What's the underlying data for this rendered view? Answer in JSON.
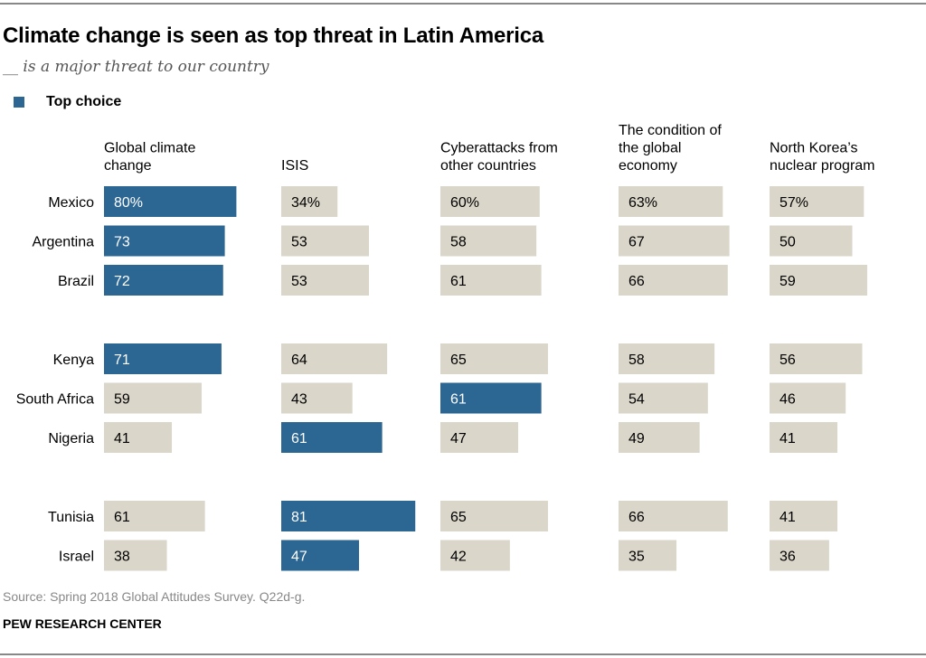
{
  "chart_data": {
    "type": "bar",
    "title": "Climate change is seen as top threat in Latin America",
    "subtitle": "__ is a major threat to our country",
    "legend": [
      {
        "name": "Top choice",
        "color": "#2c6693"
      }
    ],
    "legend_placement": "top-left",
    "grid": false,
    "unit": "%",
    "colors": {
      "top": "#2c6693",
      "other": "#dad6c9"
    },
    "categories": [
      "Mexico",
      "Argentina",
      "Brazil",
      "Kenya",
      "South Africa",
      "Nigeria",
      "Tunisia",
      "Israel"
    ],
    "groups": [
      [
        0,
        1,
        2
      ],
      [
        3,
        4,
        5
      ],
      [
        6,
        7
      ]
    ],
    "series": [
      {
        "name": [
          "Global climate",
          "change"
        ],
        "values": [
          80,
          73,
          72,
          71,
          59,
          41,
          61,
          38
        ]
      },
      {
        "name": [
          "ISIS"
        ],
        "values": [
          34,
          53,
          53,
          64,
          43,
          61,
          81,
          47
        ]
      },
      {
        "name": [
          "Cyberattacks from",
          "other countries"
        ],
        "values": [
          60,
          58,
          61,
          65,
          61,
          47,
          65,
          42
        ]
      },
      {
        "name": [
          "The condition of",
          "the global",
          "economy"
        ],
        "values": [
          63,
          67,
          66,
          58,
          54,
          49,
          66,
          35
        ]
      },
      {
        "name": [
          "North Korea’s",
          "nuclear program"
        ],
        "values": [
          57,
          50,
          59,
          56,
          46,
          41,
          41,
          36
        ]
      }
    ],
    "top_choice": [
      0,
      0,
      0,
      0,
      2,
      1,
      1,
      1
    ]
  },
  "footer": {
    "source": "Source: Spring 2018 Global Attitudes Survey. Q22d-g.",
    "brand": "PEW RESEARCH CENTER"
  }
}
